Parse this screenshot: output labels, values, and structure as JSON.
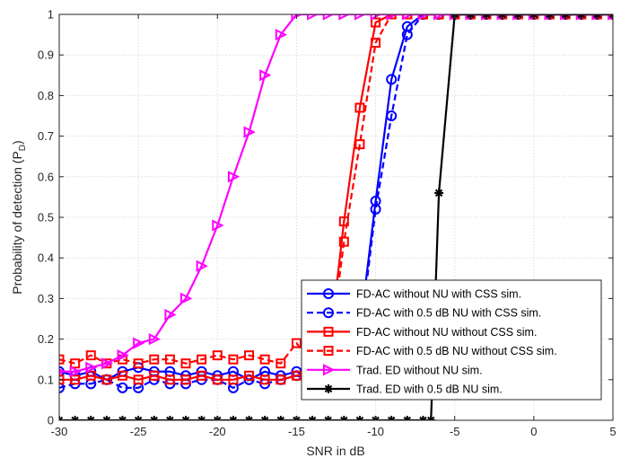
{
  "chart_data": {
    "type": "line",
    "xlabel": "SNR in dB",
    "ylabel_main": "Probability of detection (P",
    "ylabel_sub": "D",
    "ylabel_end": ")",
    "xlim": [
      -30,
      5
    ],
    "ylim": [
      0,
      1
    ],
    "xticks": [
      -30,
      -25,
      -20,
      -15,
      -10,
      -5,
      0,
      5
    ],
    "yticks": [
      0,
      0.1,
      0.2,
      0.3,
      0.4,
      0.5,
      0.6,
      0.7,
      0.8,
      0.9,
      1
    ],
    "grid": true,
    "legend_position": "bottom-right",
    "series": [
      {
        "name": "FD-AC without NU with CSS sim.",
        "color": "#0000ff",
        "dash": "solid",
        "marker": "circle",
        "x": [
          -30,
          -29,
          -28,
          -27,
          -26,
          -25,
          -24,
          -23,
          -22,
          -21,
          -20,
          -19,
          -18,
          -17,
          -16,
          -15,
          -14,
          -13,
          -12,
          -11,
          -10,
          -9,
          -8,
          -7,
          -6,
          -5,
          -4,
          -3,
          -2,
          -1,
          0,
          1,
          2,
          3,
          4,
          5
        ],
        "y": [
          0.12,
          0.11,
          0.12,
          0.1,
          0.12,
          0.13,
          0.12,
          0.12,
          0.11,
          0.12,
          0.11,
          0.12,
          0.1,
          0.12,
          0.11,
          0.12,
          0.1,
          0.11,
          0.1,
          0.22,
          0.54,
          0.84,
          0.97,
          1,
          1,
          1,
          1,
          1,
          1,
          1,
          1,
          1,
          1,
          1,
          1,
          1
        ]
      },
      {
        "name": "FD-AC with 0.5 dB NU with CSS sim.",
        "color": "#0000ff",
        "dash": "dashed",
        "marker": "circle",
        "x": [
          -30,
          -29,
          -28,
          -27,
          -26,
          -25,
          -24,
          -23,
          -22,
          -21,
          -20,
          -19,
          -18,
          -17,
          -16,
          -15,
          -14,
          -13,
          -12,
          -11,
          -10,
          -9,
          -8,
          -7,
          -6,
          -5,
          -4,
          -3,
          -2,
          -1,
          0,
          1,
          2,
          3,
          4,
          5
        ],
        "y": [
          0.08,
          0.09,
          0.09,
          0.1,
          0.08,
          0.08,
          0.1,
          0.09,
          0.09,
          0.1,
          0.1,
          0.08,
          0.1,
          0.09,
          0.1,
          0.11,
          0.1,
          0.09,
          0.1,
          0.2,
          0.52,
          0.75,
          0.95,
          1,
          1,
          1,
          1,
          1,
          1,
          1,
          1,
          1,
          1,
          1,
          1,
          1
        ]
      },
      {
        "name": "FD-AC without NU without CSS sim.",
        "color": "#ff0000",
        "dash": "solid",
        "marker": "square",
        "x": [
          -30,
          -29,
          -28,
          -27,
          -26,
          -25,
          -24,
          -23,
          -22,
          -21,
          -20,
          -19,
          -18,
          -17,
          -16,
          -15,
          -14,
          -13,
          -12,
          -11,
          -10,
          -9,
          -8,
          -7,
          -6,
          -5,
          -4,
          -3,
          -2,
          -1,
          0,
          1,
          2,
          3,
          4,
          5
        ],
        "y": [
          0.1,
          0.1,
          0.11,
          0.1,
          0.11,
          0.1,
          0.11,
          0.1,
          0.1,
          0.11,
          0.1,
          0.1,
          0.11,
          0.1,
          0.1,
          0.11,
          0.12,
          0.15,
          0.49,
          0.77,
          0.98,
          1,
          1,
          1,
          1,
          1,
          1,
          1,
          1,
          1,
          1,
          1,
          1,
          1,
          1,
          1
        ]
      },
      {
        "name": "FD-AC with 0.5 dB NU without CSS sim.",
        "color": "#ff0000",
        "dash": "dashed",
        "marker": "square",
        "x": [
          -30,
          -29,
          -28,
          -27,
          -26,
          -25,
          -24,
          -23,
          -22,
          -21,
          -20,
          -19,
          -18,
          -17,
          -16,
          -15,
          -14,
          -13,
          -12,
          -11,
          -10,
          -9,
          -8,
          -7,
          -6,
          -5,
          -4,
          -3,
          -2,
          -1,
          0,
          1,
          2,
          3,
          4,
          5
        ],
        "y": [
          0.15,
          0.14,
          0.16,
          0.14,
          0.15,
          0.14,
          0.15,
          0.15,
          0.14,
          0.15,
          0.16,
          0.15,
          0.16,
          0.15,
          0.14,
          0.19,
          0.14,
          0.14,
          0.44,
          0.68,
          0.93,
          1,
          1,
          1,
          1,
          1,
          1,
          1,
          1,
          1,
          1,
          1,
          1,
          1,
          1,
          1
        ]
      },
      {
        "name": "Trad.  ED     without  NU sim.",
        "color": "#ff00ff",
        "dash": "solid",
        "marker": "triangle-right",
        "x": [
          -30,
          -29,
          -28,
          -27,
          -26,
          -25,
          -24,
          -23,
          -22,
          -21,
          -20,
          -19,
          -18,
          -17,
          -16,
          -15,
          -14,
          -13,
          -12,
          -11,
          -10,
          -9,
          -8,
          -7,
          -6,
          -5,
          -4,
          -3,
          -2,
          -1,
          0,
          1,
          2,
          3,
          4,
          5
        ],
        "y": [
          0.12,
          0.12,
          0.13,
          0.14,
          0.16,
          0.19,
          0.2,
          0.26,
          0.3,
          0.38,
          0.48,
          0.6,
          0.71,
          0.85,
          0.95,
          1,
          1,
          1,
          1,
          1,
          1,
          1,
          1,
          1,
          1,
          1,
          1,
          1,
          1,
          1,
          1,
          1,
          1,
          1,
          1,
          1
        ]
      },
      {
        "name": "Trad. ED with 0.5 dB NU sim.",
        "color": "#000000",
        "dash": "solid",
        "marker": "star",
        "x": [
          -30,
          -29,
          -28,
          -27,
          -26,
          -25,
          -24,
          -23,
          -22,
          -21,
          -20,
          -19,
          -18,
          -17,
          -16,
          -15,
          -14,
          -13,
          -12,
          -11,
          -10,
          -9,
          -8,
          -7,
          -6.5,
          -6,
          -5,
          -4,
          -3,
          -2,
          -1,
          0,
          1,
          2,
          3,
          4,
          5
        ],
        "y": [
          0,
          0,
          0,
          0,
          0,
          0,
          0,
          0,
          0,
          0,
          0,
          0,
          0,
          0,
          0,
          0,
          0,
          0,
          0,
          0,
          0,
          0,
          0,
          0,
          0,
          0.56,
          1,
          1,
          1,
          1,
          1,
          1,
          1,
          1,
          1,
          1,
          1
        ]
      }
    ]
  }
}
